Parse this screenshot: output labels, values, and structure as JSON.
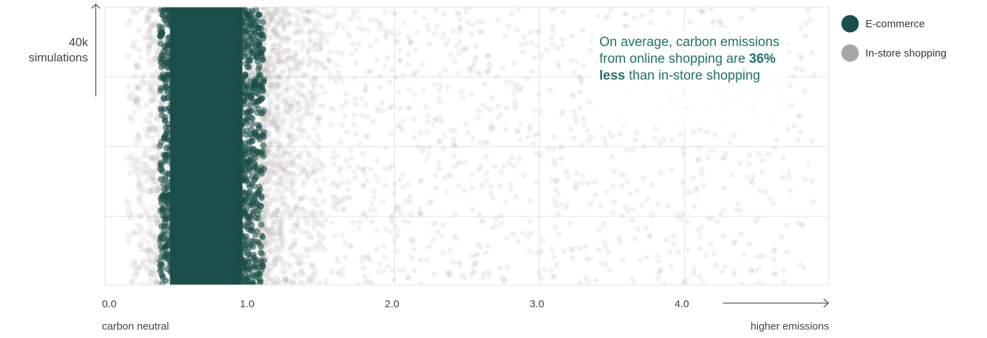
{
  "chart_data": {
    "type": "scatter",
    "ylabel_lines": [
      "40k",
      "simulations"
    ],
    "x_ticks": [
      {
        "value": 0,
        "label": "0.0"
      },
      {
        "value": 1,
        "label": "1.0"
      },
      {
        "value": 2,
        "label": "2.0"
      },
      {
        "value": 3,
        "label": "3.0"
      },
      {
        "value": 4,
        "label": "4.0"
      }
    ],
    "xlim": [
      0,
      5
    ],
    "x_end_labels": {
      "left": "carbon neutral",
      "right": "higher emissions"
    },
    "grid": true,
    "legend_position": "top-right",
    "series": [
      {
        "name": "In-store shopping",
        "color": "#a8a6a6",
        "count": 40000,
        "distribution": {
          "min": 0.15,
          "bulk_min": 0.3,
          "bulk_max": 1.55,
          "tail_max": 4.9
        }
      },
      {
        "name": "E-commerce",
        "color": "#1b4f4b",
        "count": 40000,
        "distribution": {
          "min": 0.38,
          "max": 1.1,
          "bulk_min": 0.45,
          "bulk_max": 0.95
        }
      }
    ],
    "annotation": {
      "before": "On average, carbon emissions from online shopping are ",
      "bold": "36% less",
      "after": " than in-store shopping"
    }
  }
}
